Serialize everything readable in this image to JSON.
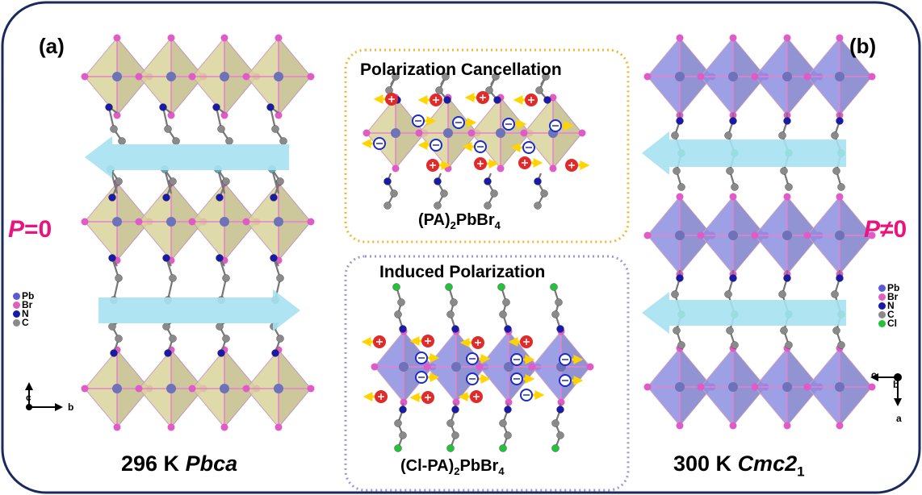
{
  "panels": {
    "a": {
      "label": "(a)",
      "temperature": "296 K ",
      "space_group": "Pbca",
      "polarization_symbol": "P",
      "polarization_value": "=0",
      "legend": [
        {
          "label": "Pb",
          "color": "#5a5ad8"
        },
        {
          "label": "Br",
          "color": "#e060c0"
        },
        {
          "label": "N",
          "color": "#1a1aa8"
        },
        {
          "label": "C",
          "color": "#8a8a8a"
        }
      ],
      "axes": {
        "vertical": "c",
        "horizontal": "b"
      }
    },
    "b": {
      "label": "(b)",
      "temperature": "300 K ",
      "space_group": "Cmc2",
      "space_group_sub": "1",
      "polarization_symbol": "P",
      "polarization_value": "≠0",
      "legend": [
        {
          "label": "Pb",
          "color": "#5a5ad8"
        },
        {
          "label": "Br",
          "color": "#e060c0"
        },
        {
          "label": "N",
          "color": "#1a1aa8"
        },
        {
          "label": "C",
          "color": "#8a8a8a"
        },
        {
          "label": "Cl",
          "color": "#22c33a"
        }
      ],
      "axes": {
        "horizontal": "c",
        "out_of_plane": "b",
        "vertical": "a"
      }
    }
  },
  "boxes": {
    "top": {
      "title": "Polarization Cancellation",
      "formula_a": "(PA)",
      "formula_sub1": "2",
      "formula_b": "PbBr",
      "formula_sub2": "4"
    },
    "bottom": {
      "title": "Induced Polarization",
      "formula_a": "(Cl-PA)",
      "formula_sub1": "2",
      "formula_b": "PbBr",
      "formula_sub2": "4"
    }
  },
  "colors": {
    "frame": "#1b2a5c",
    "octa_yellow": "#d9d49a",
    "octa_blue": "#8d8fe0",
    "layer_arrow": "#a6e1f2",
    "box_top_border": "#f2b731",
    "box_bottom_border": "#9f97cf",
    "polarization_text": "#e8157e"
  }
}
